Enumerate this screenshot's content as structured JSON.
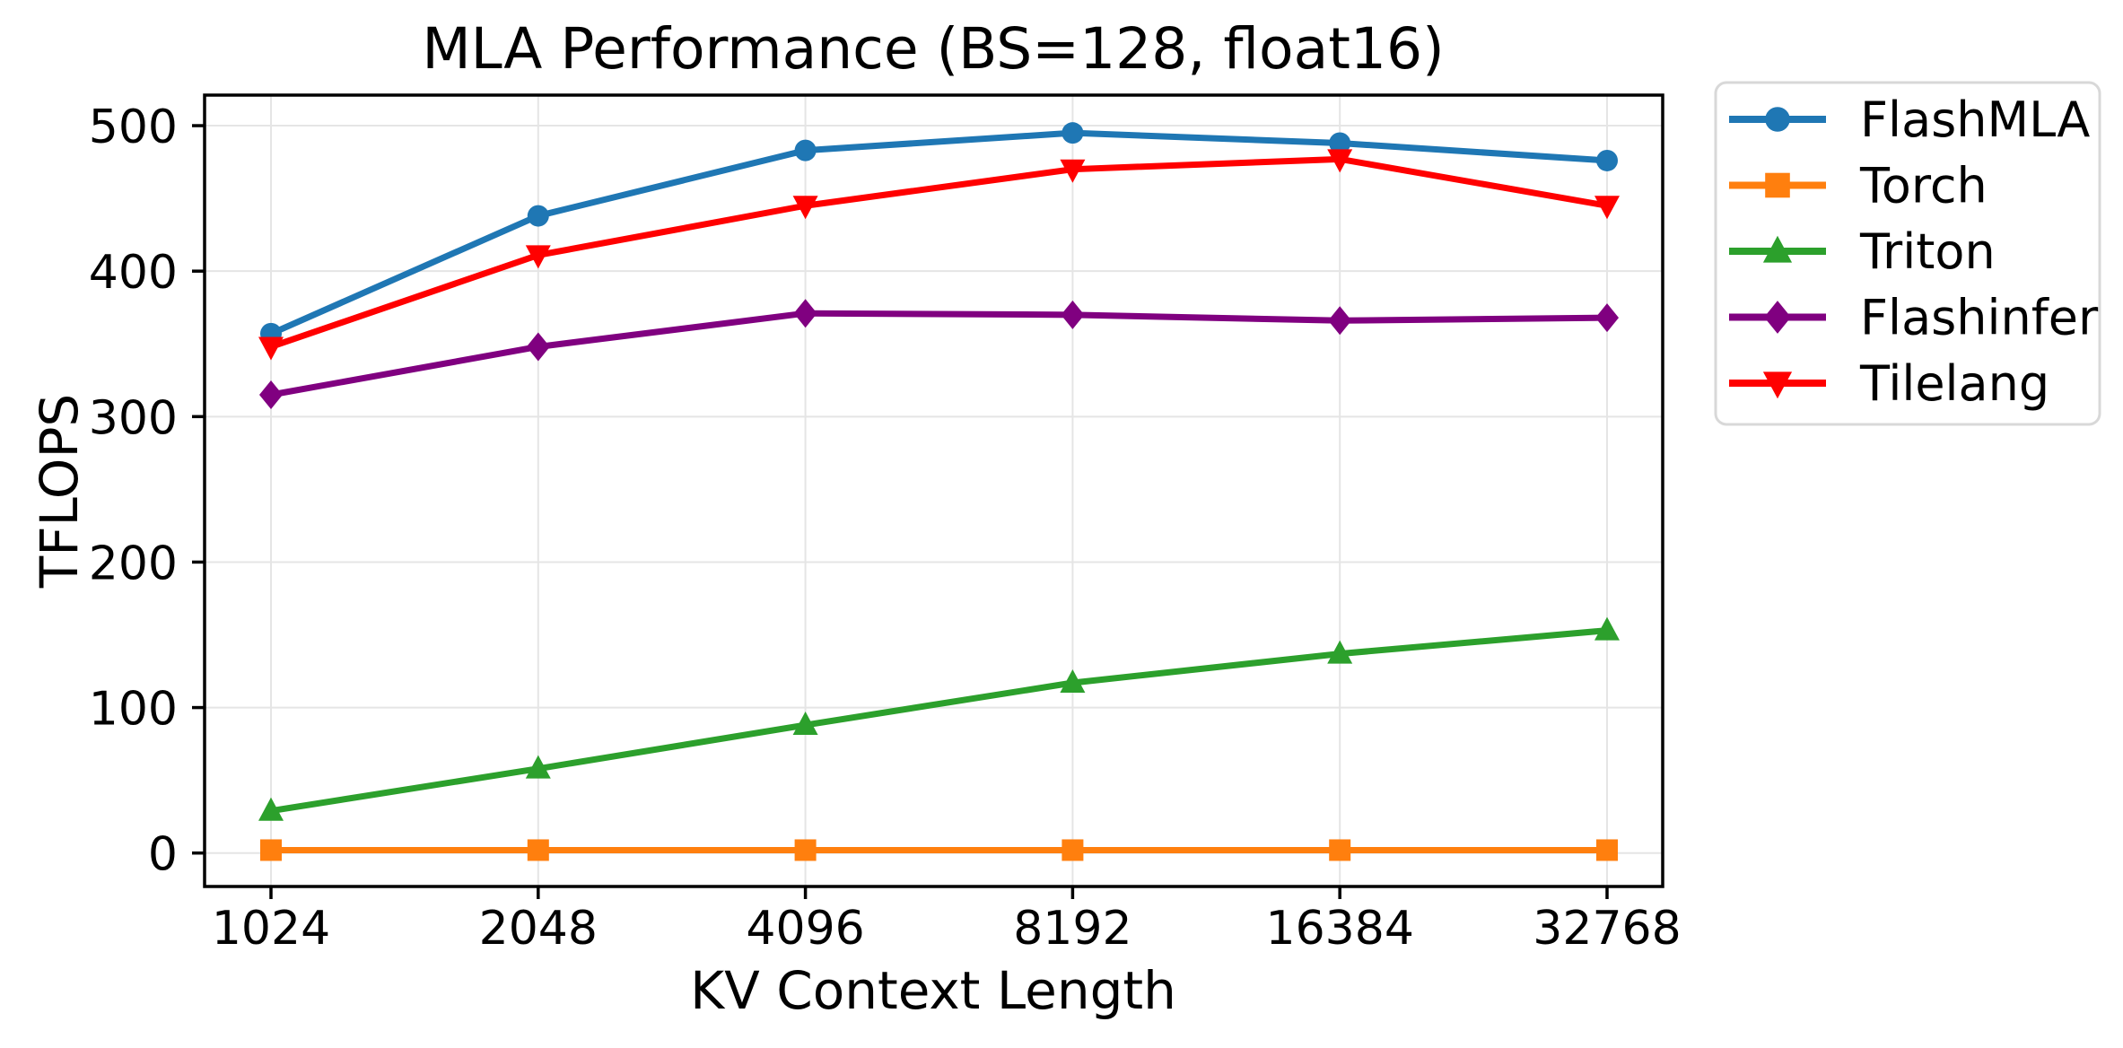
{
  "figure": {
    "background": "#ffffff"
  },
  "chart_data": {
    "type": "line",
    "title": "MLA Performance (BS=128, float16)",
    "xlabel": "KV Context Length",
    "ylabel": "TFLOPS",
    "categories": [
      "1024",
      "2048",
      "4096",
      "8192",
      "16384",
      "32768"
    ],
    "series": [
      {
        "name": "FlashMLA",
        "color": "#1f77b4",
        "marker": "circle",
        "values": [
          357,
          438,
          483,
          495,
          488,
          476
        ]
      },
      {
        "name": "Torch",
        "color": "#ff7f0e",
        "marker": "square",
        "values": [
          2,
          2,
          2,
          2,
          2,
          2
        ]
      },
      {
        "name": "Triton",
        "color": "#2ca02c",
        "marker": "triangle-up",
        "values": [
          29,
          58,
          88,
          117,
          137,
          153
        ]
      },
      {
        "name": "Flashinfer",
        "color": "#800080",
        "marker": "diamond",
        "values": [
          315,
          348,
          371,
          370,
          366,
          368
        ]
      },
      {
        "name": "Tilelang",
        "color": "#ff0000",
        "marker": "triangle-down",
        "values": [
          348,
          411,
          445,
          470,
          477,
          445
        ]
      }
    ],
    "yticks": [
      0,
      100,
      200,
      300,
      400,
      500
    ],
    "ylim": [
      -23,
      521
    ],
    "grid": true,
    "legend_position": "right-outside",
    "grid_color": "#e5e5e5",
    "spine_color": "#000000",
    "legend_border_color": "#d8d8d8"
  }
}
